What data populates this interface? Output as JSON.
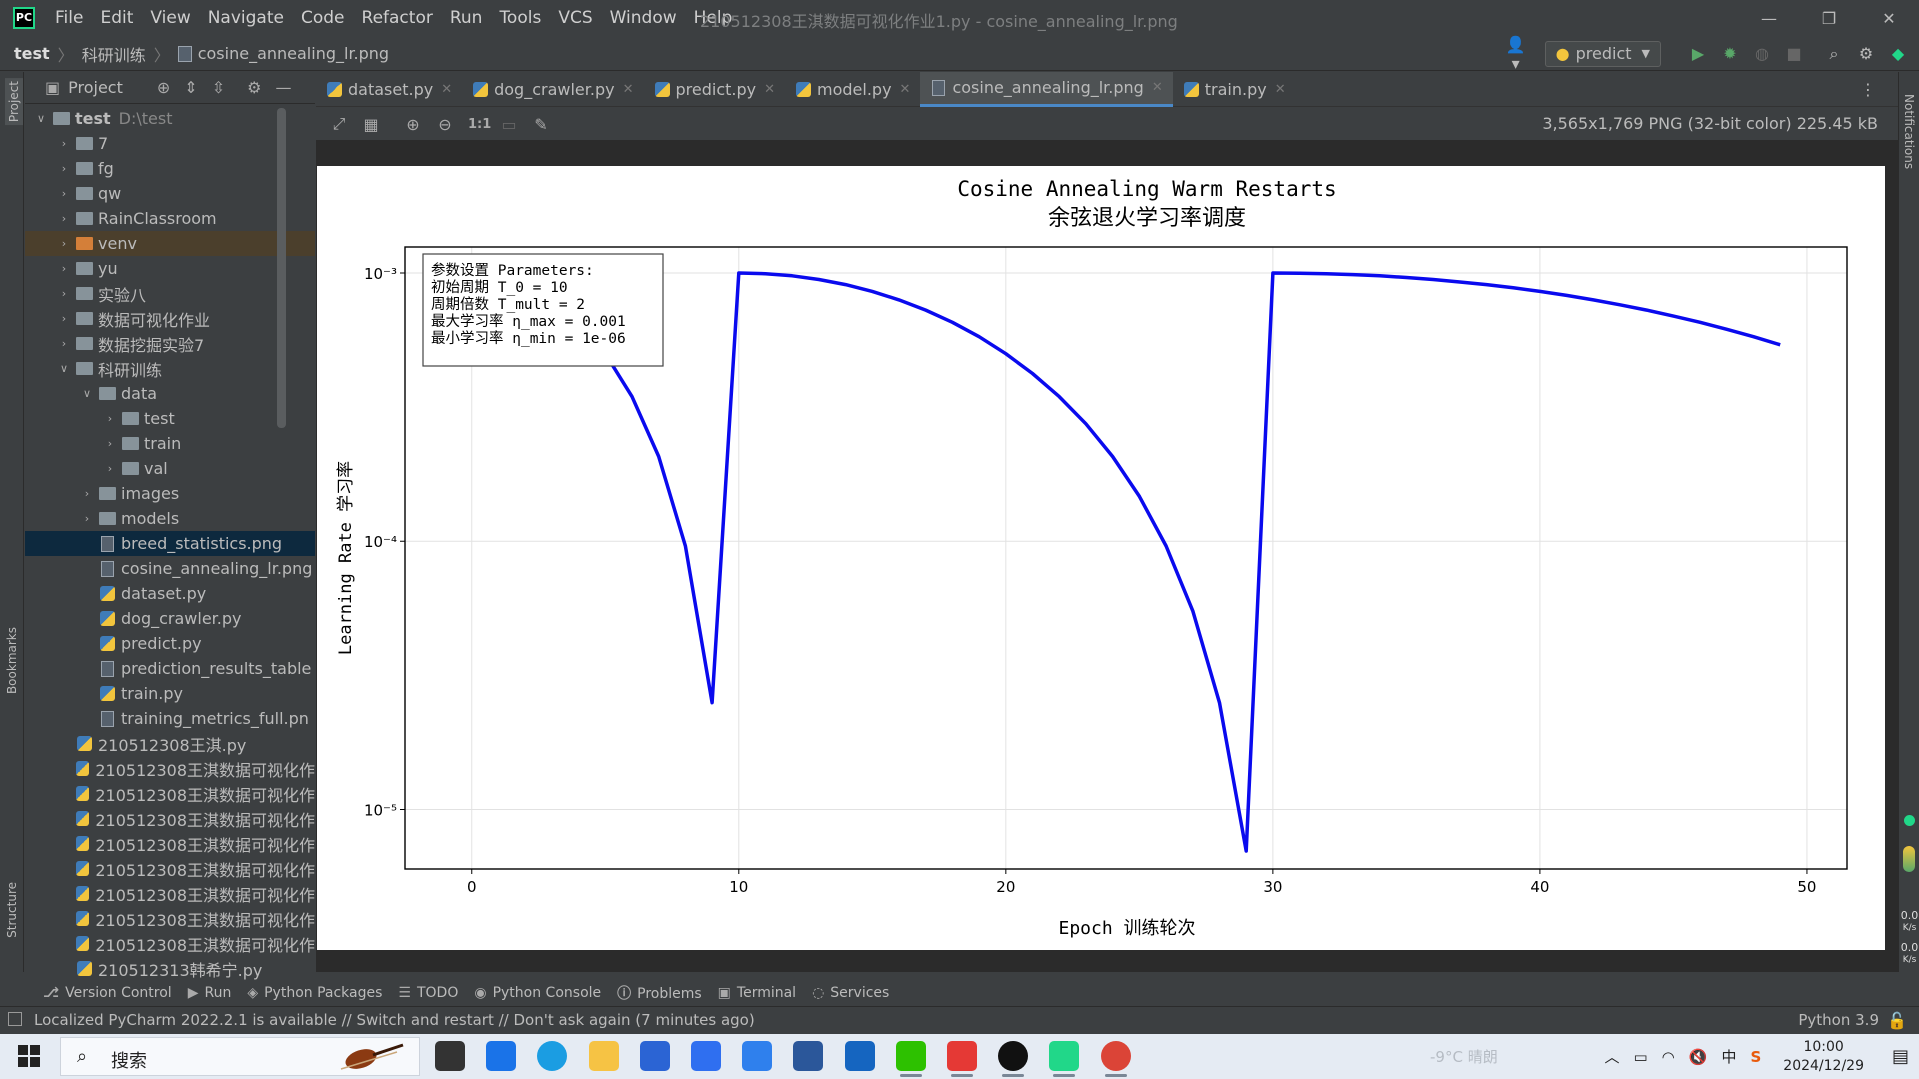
{
  "app": {
    "menu": [
      "File",
      "Edit",
      "View",
      "Navigate",
      "Code",
      "Refactor",
      "Run",
      "Tools",
      "VCS",
      "Window",
      "Help"
    ],
    "window_title": "210512308王淇数据可视化作业1.py - cosine_annealing_lr.png",
    "window_controls": [
      "—",
      "❐",
      "✕"
    ]
  },
  "navbar": {
    "project": "test",
    "folder": "科研训练",
    "file": "cosine_annealing_lr.png",
    "run_config": "predict"
  },
  "left_strip": {
    "project": "Project",
    "bookmarks": "Bookmarks",
    "structure": "Structure"
  },
  "right_strip": {
    "notifications": "Notifications",
    "speed1_value": "0.0",
    "speed1_unit": "K/s",
    "speed2_value": "0.0",
    "speed2_unit": "K/s"
  },
  "project_panel": {
    "title": "Project",
    "tree": [
      {
        "depth": 0,
        "arrow": "open",
        "kind": "folder",
        "label": "test",
        "hint": "D:\\test"
      },
      {
        "depth": 1,
        "arrow": "closed",
        "kind": "folder",
        "label": "7"
      },
      {
        "depth": 1,
        "arrow": "closed",
        "kind": "folder",
        "label": "fg"
      },
      {
        "depth": 1,
        "arrow": "closed",
        "kind": "folder",
        "label": "qw"
      },
      {
        "depth": 1,
        "arrow": "closed",
        "kind": "folder",
        "label": "RainClassroom"
      },
      {
        "depth": 1,
        "arrow": "closed",
        "kind": "folder-orange",
        "label": "venv",
        "excluded": true
      },
      {
        "depth": 1,
        "arrow": "closed",
        "kind": "folder",
        "label": "yu"
      },
      {
        "depth": 1,
        "arrow": "closed",
        "kind": "folder",
        "label": "实验八"
      },
      {
        "depth": 1,
        "arrow": "closed",
        "kind": "folder",
        "label": "数据可视化作业"
      },
      {
        "depth": 1,
        "arrow": "closed",
        "kind": "folder",
        "label": "数据挖掘实验7"
      },
      {
        "depth": 1,
        "arrow": "open",
        "kind": "folder",
        "label": "科研训练"
      },
      {
        "depth": 2,
        "arrow": "open",
        "kind": "folder",
        "label": "data"
      },
      {
        "depth": 3,
        "arrow": "closed",
        "kind": "folder",
        "label": "test"
      },
      {
        "depth": 3,
        "arrow": "closed",
        "kind": "folder",
        "label": "train"
      },
      {
        "depth": 3,
        "arrow": "closed",
        "kind": "folder",
        "label": "val"
      },
      {
        "depth": 2,
        "arrow": "closed",
        "kind": "folder",
        "label": "images"
      },
      {
        "depth": 2,
        "arrow": "closed",
        "kind": "folder",
        "label": "models"
      },
      {
        "depth": 2,
        "arrow": "none",
        "kind": "png",
        "label": "breed_statistics.png",
        "selected": true
      },
      {
        "depth": 2,
        "arrow": "none",
        "kind": "png",
        "label": "cosine_annealing_lr.png"
      },
      {
        "depth": 2,
        "arrow": "none",
        "kind": "py",
        "label": "dataset.py"
      },
      {
        "depth": 2,
        "arrow": "none",
        "kind": "py",
        "label": "dog_crawler.py"
      },
      {
        "depth": 2,
        "arrow": "none",
        "kind": "py",
        "label": "predict.py"
      },
      {
        "depth": 2,
        "arrow": "none",
        "kind": "png",
        "label": "prediction_results_table"
      },
      {
        "depth": 2,
        "arrow": "none",
        "kind": "py",
        "label": "train.py"
      },
      {
        "depth": 2,
        "arrow": "none",
        "kind": "png",
        "label": "training_metrics_full.pn"
      },
      {
        "depth": 1,
        "arrow": "none",
        "kind": "py",
        "label": "210512308王淇.py"
      },
      {
        "depth": 1,
        "arrow": "none",
        "kind": "py",
        "label": "210512308王淇数据可视化作"
      },
      {
        "depth": 1,
        "arrow": "none",
        "kind": "py",
        "label": "210512308王淇数据可视化作"
      },
      {
        "depth": 1,
        "arrow": "none",
        "kind": "py",
        "label": "210512308王淇数据可视化作"
      },
      {
        "depth": 1,
        "arrow": "none",
        "kind": "py",
        "label": "210512308王淇数据可视化作"
      },
      {
        "depth": 1,
        "arrow": "none",
        "kind": "py",
        "label": "210512308王淇数据可视化作"
      },
      {
        "depth": 1,
        "arrow": "none",
        "kind": "py",
        "label": "210512308王淇数据可视化作"
      },
      {
        "depth": 1,
        "arrow": "none",
        "kind": "py",
        "label": "210512308王淇数据可视化作"
      },
      {
        "depth": 1,
        "arrow": "none",
        "kind": "py",
        "label": "210512308王淇数据可视化作"
      },
      {
        "depth": 1,
        "arrow": "none",
        "kind": "py",
        "label": "210512313韩希宁.py"
      }
    ]
  },
  "tabs": [
    {
      "label": "dataset.py",
      "kind": "py"
    },
    {
      "label": "dog_crawler.py",
      "kind": "py"
    },
    {
      "label": "predict.py",
      "kind": "py"
    },
    {
      "label": "model.py",
      "kind": "py"
    },
    {
      "label": "cosine_annealing_lr.png",
      "kind": "png",
      "active": true
    },
    {
      "label": "train.py",
      "kind": "py"
    }
  ],
  "image_viewer": {
    "info": "3,565x1,769 PNG (32-bit color) 225.45 kB",
    "zoom_actual_label": "1:1"
  },
  "chart_data": {
    "type": "line",
    "title": "Cosine Annealing Warm Restarts",
    "subtitle": "余弦退火学习率调度",
    "xlabel": "Epoch 训练轮次",
    "ylabel": "Learning Rate 学习率",
    "yscale": "log",
    "xlim": [
      -2.5,
      51.5
    ],
    "ylim": [
      6e-06,
      0.00125
    ],
    "xticks": [
      0,
      10,
      20,
      30,
      40,
      50
    ],
    "yticks": [
      {
        "value": 0.001,
        "label": "10⁻³"
      },
      {
        "value": 0.0001,
        "label": "10⁻⁴"
      },
      {
        "value": 1e-05,
        "label": "10⁻⁵"
      }
    ],
    "grid": true,
    "legend": {
      "placement": "top-left",
      "lines": [
        "参数设置 Parameters:",
        "初始周期 T_0 = 10",
        "周期倍数 T_mult = 2",
        "最大学习率 η_max = 0.001",
        "最小学习率 η_min = 1e-06"
      ]
    },
    "series": [
      {
        "color": "#0a0aee",
        "x": [
          0,
          1,
          2,
          3,
          4,
          5,
          6,
          7,
          8,
          9,
          10,
          11,
          12,
          13,
          14,
          15,
          16,
          17,
          18,
          19,
          20,
          21,
          22,
          23,
          24,
          25,
          26,
          27,
          28,
          29,
          30,
          31,
          32,
          33,
          34,
          35,
          36,
          37,
          38,
          39,
          40,
          41,
          42,
          43,
          44,
          45,
          46,
          47,
          48,
          49
        ],
        "y": [
          0.001,
          0.000976,
          0.000905,
          0.000794,
          0.000655,
          0.0005,
          0.000346,
          0.000207,
          9.6e-05,
          2.5e-05,
          0.001,
          0.000994,
          0.000976,
          0.000946,
          0.000905,
          0.000854,
          0.000794,
          0.000727,
          0.000655,
          0.000579,
          0.0005,
          0.000422,
          0.000346,
          0.000274,
          0.000207,
          0.000147,
          9.6e-05,
          5.5e-05,
          2.5e-05,
          7e-06,
          0.001,
          0.000998,
          0.000994,
          0.000986,
          0.000976,
          0.000962,
          0.000946,
          0.000926,
          0.000905,
          0.000881,
          0.000854,
          0.000825,
          0.000794,
          0.000761,
          0.000727,
          0.000691,
          0.000655,
          0.000617,
          0.000579,
          0.00054
        ]
      }
    ]
  },
  "tool_windows": [
    "Version Control",
    "Run",
    "Python Packages",
    "TODO",
    "Python Console",
    "Problems",
    "Terminal",
    "Services"
  ],
  "status": {
    "message": "Localized PyCharm 2022.2.1 is available // Switch and restart // Don't ask again (7 minutes ago)",
    "interpreter": "Python 3.9"
  },
  "taskbar": {
    "search_placeholder": "搜索",
    "weather": "-9°C 晴朗",
    "ime": "中",
    "time": "10:00",
    "date": "2024/12/29",
    "apps": [
      {
        "name": "task-view",
        "color": "#333333"
      },
      {
        "name": "mail",
        "color": "#1a73e8"
      },
      {
        "name": "edge",
        "color": "#1b9de2"
      },
      {
        "name": "file-explorer",
        "color": "#f6c344"
      },
      {
        "name": "store",
        "color": "#2b64d4"
      },
      {
        "name": "lark",
        "color": "#2f6ff0"
      },
      {
        "name": "tencent-meeting",
        "color": "#2f80ed"
      },
      {
        "name": "word",
        "color": "#2b579a"
      },
      {
        "name": "search-app",
        "color": "#1565c0"
      },
      {
        "name": "wechat",
        "color": "#2dc100"
      },
      {
        "name": "wps",
        "color": "#e53935"
      },
      {
        "name": "qq",
        "color": "#111111"
      },
      {
        "name": "pycharm",
        "color": "#21d789"
      },
      {
        "name": "chrome",
        "color": "#db4437"
      }
    ]
  }
}
